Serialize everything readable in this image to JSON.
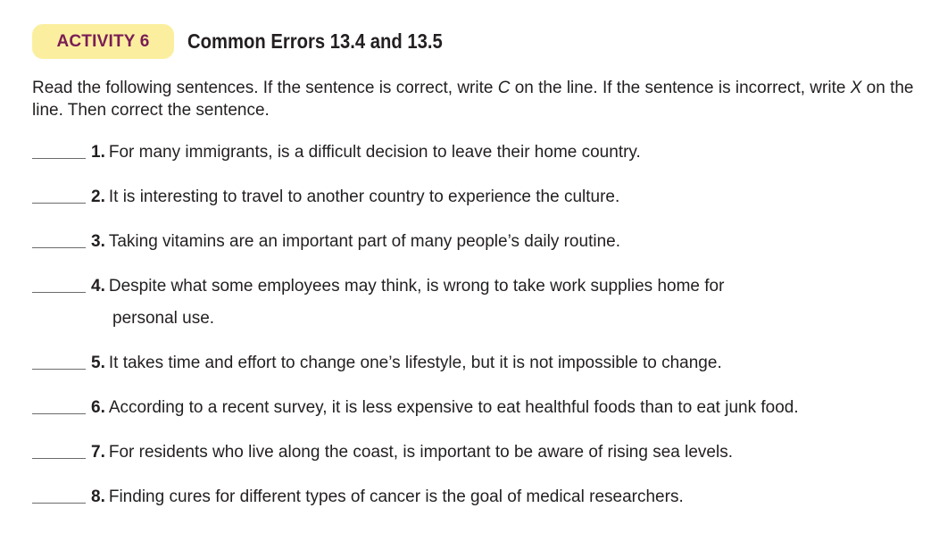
{
  "header": {
    "badge": "ACTIVITY 6",
    "title": "Common Errors 13.4 and 13.5"
  },
  "instructions": {
    "part1": "Read the following sentences. If the sentence is correct, write ",
    "correct_mark": "C",
    "part2": " on the line. If the sentence is incorrect, write ",
    "incorrect_mark": "X",
    "part3": " on the line. Then correct the sentence."
  },
  "items": [
    {
      "num": "1.",
      "text": "For many immigrants, is a difficult decision to leave their home country.",
      "cont": ""
    },
    {
      "num": "2.",
      "text": "It is interesting to travel to another country to experience the culture.",
      "cont": ""
    },
    {
      "num": "3.",
      "text": "Taking vitamins are an important part of many people’s daily routine.",
      "cont": ""
    },
    {
      "num": "4.",
      "text": "Despite what some employees may think, is wrong to take work supplies home for",
      "cont": "personal use."
    },
    {
      "num": "5.",
      "text": "It takes time and effort to change one’s lifestyle, but it is not impossible to change.",
      "cont": ""
    },
    {
      "num": "6.",
      "text": "According to a recent survey, it is less expensive to eat healthful foods than to eat junk food.",
      "cont": ""
    },
    {
      "num": "7.",
      "text": "For residents who live along the coast, is important to be aware of rising sea levels.",
      "cont": ""
    },
    {
      "num": "8.",
      "text": "Finding cures for different types of cancer is the goal of medical researchers.",
      "cont": ""
    }
  ]
}
